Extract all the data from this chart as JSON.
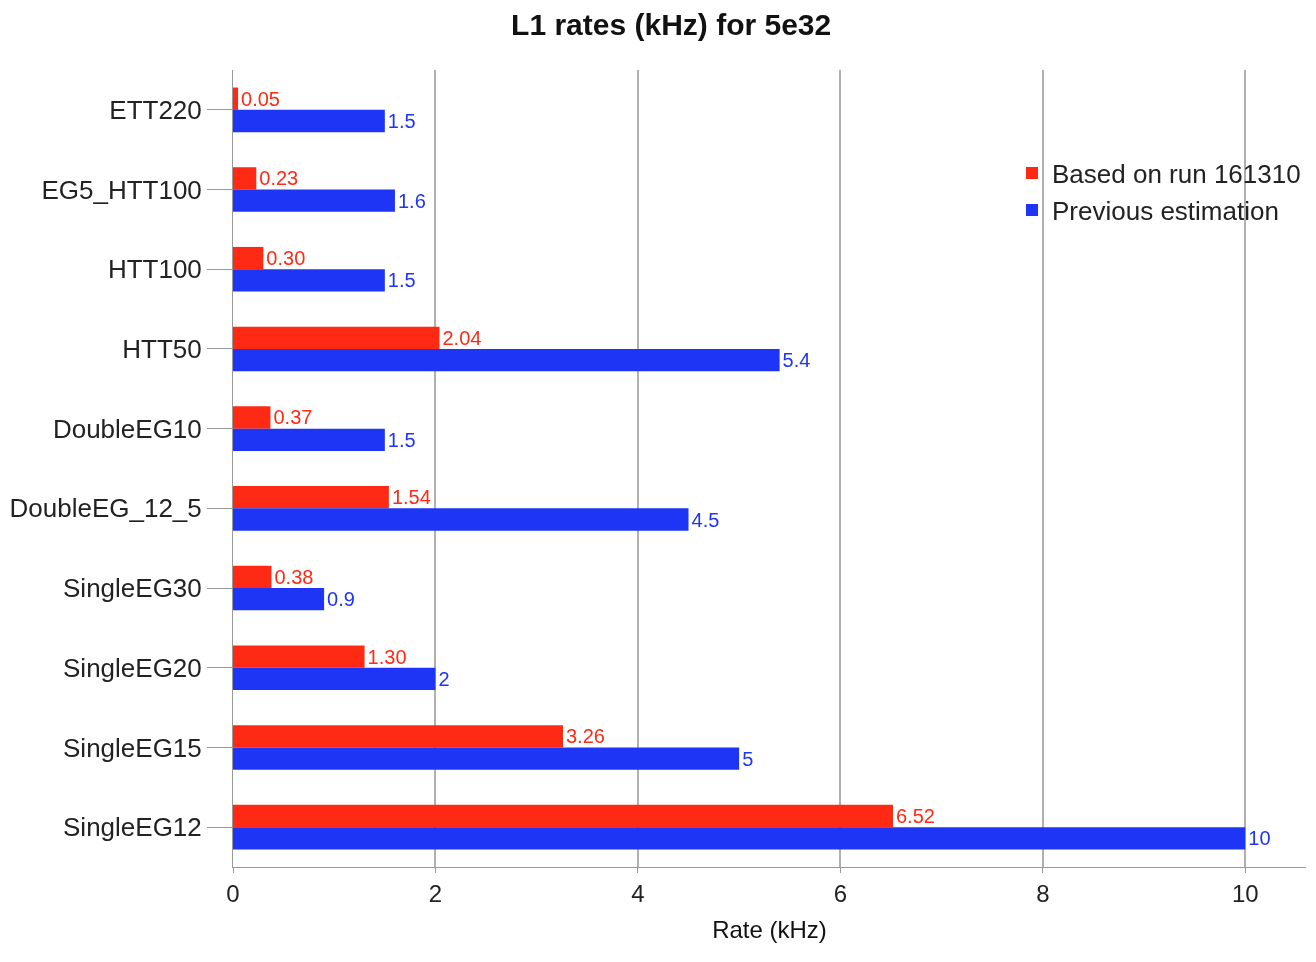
{
  "chart_data": {
    "type": "bar",
    "orientation": "horizontal",
    "title": "L1 rates (kHz) for 5e32",
    "xlabel": "Rate (kHz)",
    "categories": [
      "ETT220",
      "EG5_HTT100",
      "HTT100",
      "HTT50",
      "DoubleEG10",
      "DoubleEG_12_5",
      "SingleEG30",
      "SingleEG20",
      "SingleEG15",
      "SingleEG12"
    ],
    "series": [
      {
        "name": "Based on run 161310",
        "color": "#ff2a14",
        "values": [
          0.05,
          0.23,
          0.3,
          2.04,
          0.37,
          1.54,
          0.38,
          1.3,
          3.26,
          6.52
        ],
        "value_labels": [
          "0.05",
          "0.23",
          "0.30",
          "2.04",
          "0.37",
          "1.54",
          "0.38",
          "1.30",
          "3.26",
          "6.52"
        ]
      },
      {
        "name": "Previous estimation",
        "color": "#1f35f5",
        "values": [
          1.5,
          1.6,
          1.5,
          5.4,
          1.5,
          4.5,
          0.9,
          2,
          5,
          10
        ],
        "value_labels": [
          "1.5",
          "1.6",
          "1.5",
          "5.4",
          "1.5",
          "4.5",
          "0.9",
          "2",
          "5",
          "10"
        ]
      }
    ],
    "xlim": [
      0,
      10.6
    ],
    "xticks": [
      0,
      2,
      4,
      6,
      8,
      10
    ],
    "grid": "x",
    "legend": "top right"
  }
}
